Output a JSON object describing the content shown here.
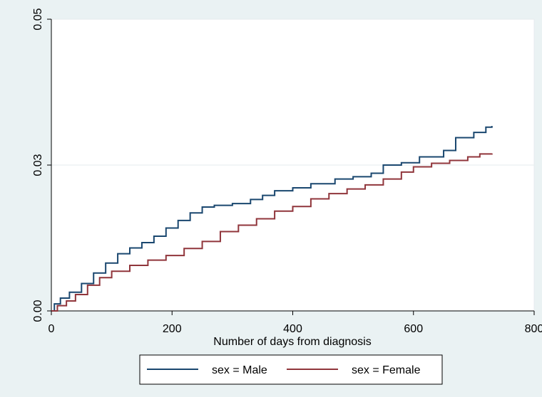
{
  "chart_data": {
    "type": "line",
    "title": "",
    "xlabel": "Number of days from diagnosis",
    "ylabel": "",
    "xlim": [
      0,
      800
    ],
    "ylim": [
      0,
      0.05
    ],
    "x_ticks": [
      0,
      200,
      400,
      600,
      800
    ],
    "x_tick_labels": [
      "0",
      "200",
      "400",
      "600",
      "800"
    ],
    "y_ticks": [
      0,
      0.025,
      0.05
    ],
    "y_tick_labels": [
      "0.00",
      "0.03",
      "0.05"
    ],
    "grid": true,
    "legend_position": "bottom",
    "series": [
      {
        "name": "sex = Male",
        "color": "#1a476f",
        "points": [
          [
            0,
            0.0
          ],
          [
            5,
            0.0012
          ],
          [
            15,
            0.0022
          ],
          [
            30,
            0.0032
          ],
          [
            50,
            0.0047
          ],
          [
            70,
            0.0065
          ],
          [
            90,
            0.0082
          ],
          [
            110,
            0.0098
          ],
          [
            130,
            0.0108
          ],
          [
            150,
            0.0117
          ],
          [
            170,
            0.0128
          ],
          [
            190,
            0.0142
          ],
          [
            210,
            0.0155
          ],
          [
            230,
            0.0168
          ],
          [
            250,
            0.0178
          ],
          [
            270,
            0.0181
          ],
          [
            300,
            0.0184
          ],
          [
            330,
            0.0191
          ],
          [
            350,
            0.0198
          ],
          [
            370,
            0.0206
          ],
          [
            400,
            0.0211
          ],
          [
            430,
            0.0218
          ],
          [
            470,
            0.0226
          ],
          [
            500,
            0.023
          ],
          [
            530,
            0.0236
          ],
          [
            550,
            0.025
          ],
          [
            580,
            0.0254
          ],
          [
            610,
            0.0264
          ],
          [
            650,
            0.0275
          ],
          [
            670,
            0.0297
          ],
          [
            700,
            0.0306
          ],
          [
            720,
            0.0315
          ],
          [
            730,
            0.0317
          ]
        ]
      },
      {
        "name": "sex = Female",
        "color": "#90353b",
        "points": [
          [
            0,
            0.0
          ],
          [
            10,
            0.0009
          ],
          [
            25,
            0.0017
          ],
          [
            40,
            0.0028
          ],
          [
            60,
            0.0044
          ],
          [
            80,
            0.0057
          ],
          [
            100,
            0.0068
          ],
          [
            130,
            0.0078
          ],
          [
            160,
            0.0087
          ],
          [
            190,
            0.0095
          ],
          [
            220,
            0.0107
          ],
          [
            250,
            0.0119
          ],
          [
            280,
            0.0136
          ],
          [
            310,
            0.0147
          ],
          [
            340,
            0.0158
          ],
          [
            370,
            0.0171
          ],
          [
            400,
            0.0179
          ],
          [
            430,
            0.0192
          ],
          [
            460,
            0.0201
          ],
          [
            490,
            0.0209
          ],
          [
            520,
            0.0216
          ],
          [
            550,
            0.0226
          ],
          [
            580,
            0.0238
          ],
          [
            600,
            0.0247
          ],
          [
            630,
            0.0253
          ],
          [
            660,
            0.0258
          ],
          [
            690,
            0.0264
          ],
          [
            710,
            0.0269
          ],
          [
            730,
            0.027
          ]
        ]
      }
    ]
  },
  "legend": {
    "items": [
      {
        "label": "sex = Male",
        "color": "#1a476f"
      },
      {
        "label": "sex = Female",
        "color": "#90353b"
      }
    ]
  }
}
